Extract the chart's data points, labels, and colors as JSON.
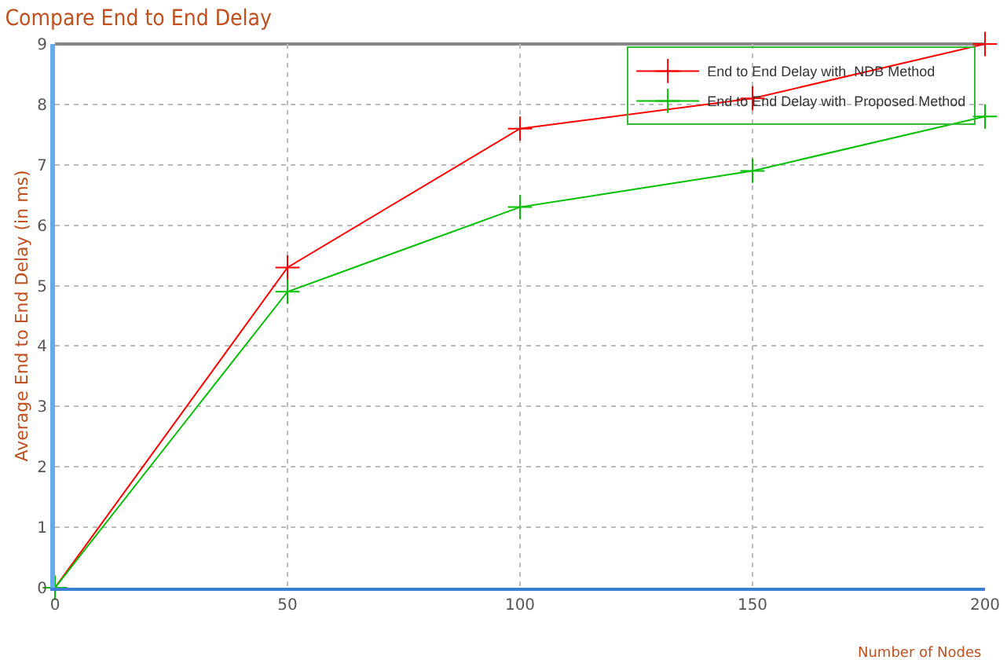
{
  "chart_data": {
    "type": "line",
    "title": "Compare End to End Delay",
    "xlabel": "Number of Nodes",
    "ylabel": "Average End to End Delay (in ms)",
    "x": [
      0,
      50,
      100,
      150,
      200
    ],
    "series": [
      {
        "name": "End to End Delay with  NDB Method",
        "color": "#ff0000",
        "values": [
          0,
          5.3,
          7.6,
          8.1,
          9
        ]
      },
      {
        "name": "End to End Delay with  Proposed Method",
        "color": "#00c000",
        "values": [
          0,
          4.9,
          6.3,
          6.9,
          7.8
        ]
      }
    ],
    "xlim": [
      0,
      200
    ],
    "xticks": [
      0,
      50,
      100,
      150,
      200
    ],
    "ylim": [
      0,
      9
    ],
    "yticks": [
      0,
      1,
      2,
      3,
      4,
      5,
      6,
      7,
      8,
      9
    ],
    "grid": true,
    "legend": "top right",
    "marker": "cross",
    "line_style": "solid"
  }
}
